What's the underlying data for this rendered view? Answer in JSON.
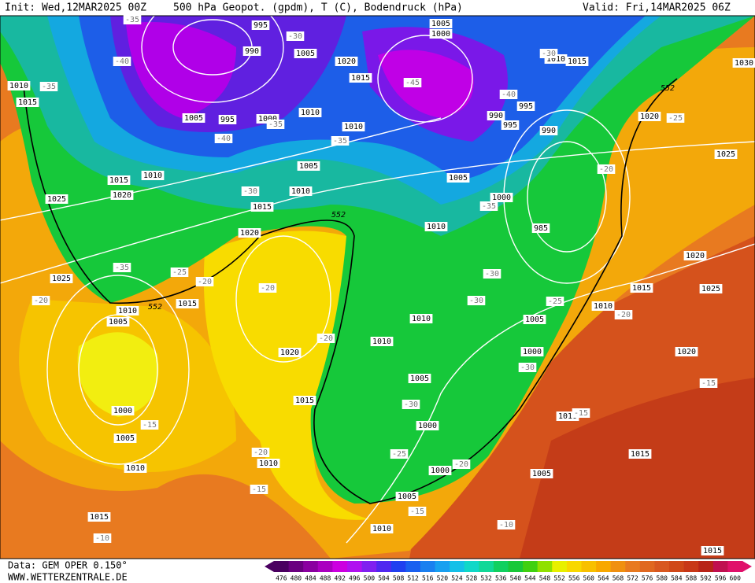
{
  "header": {
    "init": "Init: Wed,12MAR2025 00Z",
    "title": "500 hPa Geopot. (gpdm), T (C), Bodendruck (hPa)",
    "valid": "Valid: Fri,14MAR2025 06Z"
  },
  "footer": {
    "source": "Data: GEM OPER 0.150°",
    "website": "WWW.WETTERZENTRALE.DE"
  },
  "map": {
    "pressure_labels": [
      995,
      1005,
      1000,
      990,
      1005,
      1020,
      1015,
      1010,
      1015,
      1030,
      1010,
      1015,
      1005,
      995,
      1000,
      1010,
      1010,
      1020,
      1025,
      1005,
      1010,
      1015,
      1020,
      1025,
      1010,
      1015,
      1005,
      1000,
      990,
      995,
      990,
      995,
      985,
      1010,
      1020,
      1025,
      1010,
      1005,
      1015,
      1020,
      1010,
      1010,
      1005,
      1010,
      1015,
      1020,
      1025,
      1020,
      1000,
      1005,
      1015,
      1000,
      1005,
      1010,
      1000,
      1010,
      1010,
      1000,
      1005,
      1015,
      1005,
      1015,
      1010,
      1015
    ],
    "temperature_labels": [
      -35,
      -40,
      -35,
      -35,
      -40,
      -45,
      -40,
      -30,
      -30,
      -35,
      -30,
      -35,
      -25,
      -20,
      -35,
      -25,
      -20,
      -20,
      -20,
      -20,
      -30,
      -30,
      -25,
      -20,
      -30,
      -30,
      -15,
      -25,
      -20,
      -20,
      -15,
      -15,
      -15,
      -10,
      -10,
      -15
    ],
    "geopotential_labels": [
      552,
      552,
      552
    ]
  },
  "legend": {
    "values": [
      476,
      480,
      484,
      488,
      492,
      496,
      500,
      504,
      508,
      512,
      516,
      520,
      524,
      528,
      532,
      536,
      540,
      544,
      548,
      552,
      556,
      560,
      564,
      568,
      572,
      576,
      580,
      584,
      588,
      592,
      596,
      600
    ],
    "colors": [
      "#4a0060",
      "#6a0080",
      "#8a00a0",
      "#aa00c0",
      "#cc00e0",
      "#b010f0",
      "#8020f0",
      "#5028f0",
      "#2040f0",
      "#1a60f0",
      "#1a80f0",
      "#18a0f0",
      "#14c0e8",
      "#10d8c8",
      "#10d898",
      "#10d060",
      "#18c838",
      "#40d010",
      "#90e000",
      "#e8f000",
      "#f8d800",
      "#f8c000",
      "#f8a800",
      "#f09010",
      "#e87a20",
      "#e06820",
      "#d85820",
      "#d04818",
      "#c83818",
      "#b82418",
      "#c01050",
      "#e0106a"
    ]
  }
}
